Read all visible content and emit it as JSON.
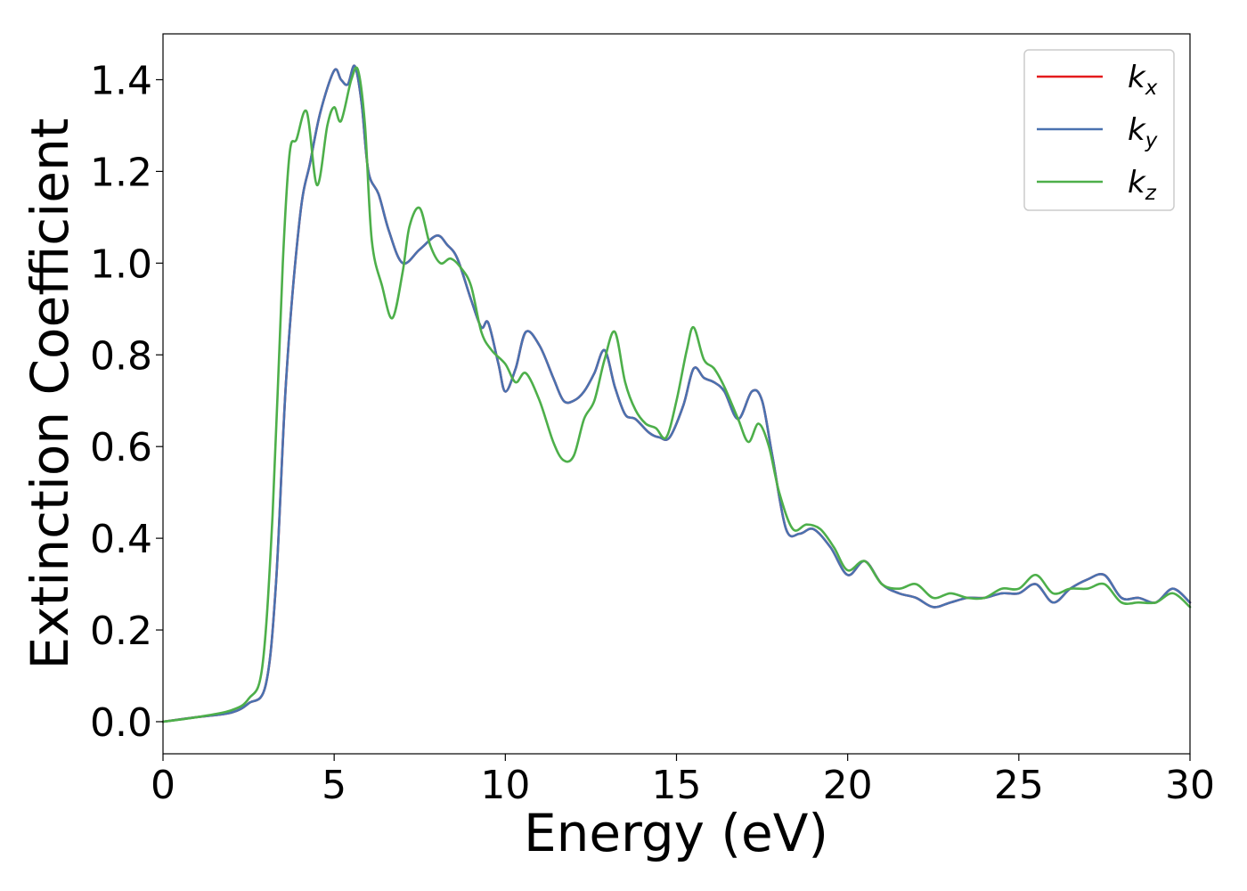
{
  "chart_data": {
    "type": "line",
    "xlabel": "Energy (eV)",
    "ylabel": "Extinction Coefficient",
    "xlim": [
      0,
      30
    ],
    "ylim": [
      -0.07,
      1.5
    ],
    "xticks": [
      0,
      5,
      10,
      15,
      20,
      25,
      30
    ],
    "xtick_labels": [
      "0",
      "5",
      "10",
      "15",
      "20",
      "25",
      "30"
    ],
    "yticks": [
      0.0,
      0.2,
      0.4,
      0.6,
      0.8,
      1.0,
      1.2,
      1.4
    ],
    "ytick_labels": [
      "0.0",
      "0.2",
      "0.4",
      "0.6",
      "0.8",
      "1.0",
      "1.2",
      "1.4"
    ],
    "grid": false,
    "legend_position": "top-right",
    "series": [
      {
        "name": "k_x",
        "label_main": "k",
        "label_sub": "x",
        "color": "#e41a1c",
        "x": [
          0,
          1,
          2,
          2.5,
          3,
          3.3,
          3.6,
          4,
          4.3,
          4.6,
          5,
          5.2,
          5.4,
          5.6,
          5.8,
          6,
          6.3,
          6.6,
          7,
          7.5,
          8,
          8.3,
          8.6,
          9,
          9.3,
          9.5,
          9.8,
          10,
          10.3,
          10.6,
          11,
          11.4,
          11.7,
          12,
          12.3,
          12.6,
          12.9,
          13.2,
          13.5,
          13.8,
          14.2,
          14.5,
          14.8,
          15.2,
          15.5,
          15.8,
          16.1,
          16.4,
          16.8,
          17.2,
          17.5,
          17.8,
          18.2,
          18.6,
          19,
          19.5,
          20,
          20.5,
          21,
          21.5,
          22,
          22.5,
          23,
          23.5,
          24,
          24.5,
          25,
          25.5,
          26,
          26.5,
          27,
          27.5,
          28,
          28.5,
          29,
          29.5,
          30
        ],
        "y": [
          0,
          0.01,
          0.02,
          0.04,
          0.08,
          0.3,
          0.75,
          1.1,
          1.22,
          1.33,
          1.42,
          1.4,
          1.39,
          1.43,
          1.35,
          1.2,
          1.15,
          1.07,
          1.0,
          1.03,
          1.06,
          1.04,
          1.01,
          0.92,
          0.86,
          0.87,
          0.78,
          0.72,
          0.77,
          0.85,
          0.82,
          0.75,
          0.7,
          0.7,
          0.72,
          0.76,
          0.81,
          0.73,
          0.67,
          0.66,
          0.63,
          0.62,
          0.62,
          0.69,
          0.77,
          0.75,
          0.74,
          0.72,
          0.66,
          0.72,
          0.7,
          0.58,
          0.42,
          0.41,
          0.42,
          0.38,
          0.32,
          0.35,
          0.3,
          0.28,
          0.27,
          0.25,
          0.26,
          0.27,
          0.27,
          0.28,
          0.28,
          0.3,
          0.26,
          0.29,
          0.31,
          0.32,
          0.27,
          0.27,
          0.26,
          0.29,
          0.26
        ]
      },
      {
        "name": "k_y",
        "label_main": "k",
        "label_sub": "y",
        "color": "#4a72b0",
        "x": [
          0,
          1,
          2,
          2.5,
          3,
          3.3,
          3.6,
          4,
          4.3,
          4.6,
          5,
          5.2,
          5.4,
          5.6,
          5.8,
          6,
          6.3,
          6.6,
          7,
          7.5,
          8,
          8.3,
          8.6,
          9,
          9.3,
          9.5,
          9.8,
          10,
          10.3,
          10.6,
          11,
          11.4,
          11.7,
          12,
          12.3,
          12.6,
          12.9,
          13.2,
          13.5,
          13.8,
          14.2,
          14.5,
          14.8,
          15.2,
          15.5,
          15.8,
          16.1,
          16.4,
          16.8,
          17.2,
          17.5,
          17.8,
          18.2,
          18.6,
          19,
          19.5,
          20,
          20.5,
          21,
          21.5,
          22,
          22.5,
          23,
          23.5,
          24,
          24.5,
          25,
          25.5,
          26,
          26.5,
          27,
          27.5,
          28,
          28.5,
          29,
          29.5,
          30
        ],
        "y": [
          0,
          0.01,
          0.02,
          0.04,
          0.08,
          0.3,
          0.75,
          1.1,
          1.22,
          1.33,
          1.42,
          1.4,
          1.39,
          1.43,
          1.35,
          1.2,
          1.15,
          1.07,
          1.0,
          1.03,
          1.06,
          1.04,
          1.01,
          0.92,
          0.86,
          0.87,
          0.78,
          0.72,
          0.77,
          0.85,
          0.82,
          0.75,
          0.7,
          0.7,
          0.72,
          0.76,
          0.81,
          0.73,
          0.67,
          0.66,
          0.63,
          0.62,
          0.62,
          0.69,
          0.77,
          0.75,
          0.74,
          0.72,
          0.66,
          0.72,
          0.7,
          0.58,
          0.42,
          0.41,
          0.42,
          0.38,
          0.32,
          0.35,
          0.3,
          0.28,
          0.27,
          0.25,
          0.26,
          0.27,
          0.27,
          0.28,
          0.28,
          0.3,
          0.26,
          0.29,
          0.31,
          0.32,
          0.27,
          0.27,
          0.26,
          0.29,
          0.26
        ]
      },
      {
        "name": "k_z",
        "label_main": "k",
        "label_sub": "z",
        "color": "#4daf4a",
        "x": [
          0,
          1,
          2,
          2.5,
          2.9,
          3.2,
          3.5,
          3.7,
          3.9,
          4.2,
          4.5,
          4.8,
          5,
          5.2,
          5.5,
          5.7,
          5.9,
          6.1,
          6.4,
          6.7,
          7,
          7.2,
          7.5,
          7.8,
          8.1,
          8.4,
          8.7,
          9,
          9.3,
          9.6,
          10,
          10.3,
          10.6,
          11,
          11.4,
          11.7,
          12,
          12.3,
          12.6,
          12.9,
          13.2,
          13.5,
          13.8,
          14.1,
          14.4,
          14.7,
          15,
          15.3,
          15.5,
          15.8,
          16.1,
          16.4,
          16.8,
          17.1,
          17.4,
          17.7,
          18,
          18.4,
          18.8,
          19.2,
          19.6,
          20,
          20.5,
          21,
          21.5,
          22,
          22.5,
          23,
          23.5,
          24,
          24.5,
          25,
          25.5,
          26,
          26.5,
          27,
          27.5,
          28,
          28.5,
          29,
          29.5,
          30
        ],
        "y": [
          0,
          0.01,
          0.025,
          0.05,
          0.12,
          0.45,
          1.0,
          1.24,
          1.27,
          1.33,
          1.17,
          1.3,
          1.34,
          1.31,
          1.4,
          1.42,
          1.3,
          1.05,
          0.95,
          0.88,
          0.98,
          1.08,
          1.12,
          1.04,
          1.0,
          1.01,
          0.99,
          0.95,
          0.85,
          0.81,
          0.78,
          0.74,
          0.76,
          0.7,
          0.61,
          0.57,
          0.58,
          0.66,
          0.7,
          0.79,
          0.85,
          0.74,
          0.68,
          0.65,
          0.64,
          0.62,
          0.7,
          0.81,
          0.86,
          0.79,
          0.77,
          0.73,
          0.66,
          0.61,
          0.65,
          0.6,
          0.5,
          0.42,
          0.43,
          0.42,
          0.38,
          0.33,
          0.35,
          0.3,
          0.29,
          0.3,
          0.27,
          0.28,
          0.27,
          0.27,
          0.29,
          0.29,
          0.32,
          0.28,
          0.29,
          0.29,
          0.3,
          0.26,
          0.26,
          0.26,
          0.28,
          0.25
        ]
      }
    ]
  }
}
